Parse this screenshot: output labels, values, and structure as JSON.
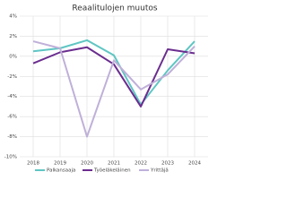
{
  "chart_data": {
    "type": "line",
    "title": "Reaalitulojen muutos",
    "categories": [
      "2018",
      "2019",
      "2020",
      "2021",
      "2022",
      "2023",
      "2024"
    ],
    "series": [
      {
        "name": "Palkansaaja",
        "color": "#5ec6c3",
        "values": [
          0.5,
          0.8,
          1.6,
          0.1,
          -4.8,
          -1.4,
          1.5
        ]
      },
      {
        "name": "Työeläkeläinen",
        "color": "#6b2d8f",
        "values": [
          -0.7,
          0.4,
          0.9,
          -0.8,
          -5.0,
          0.7,
          0.3
        ]
      },
      {
        "name": "Yrittäjä",
        "color": "#bfb0d9",
        "values": [
          1.5,
          0.8,
          -8.0,
          -0.4,
          -3.3,
          -1.8,
          1.0
        ]
      }
    ],
    "ylim": [
      -10,
      4
    ],
    "yticks": [
      {
        "value": 4,
        "label": "4%"
      },
      {
        "value": 2,
        "label": "2%"
      },
      {
        "value": 0,
        "label": "0%"
      },
      {
        "value": -2,
        "label": "-2%"
      },
      {
        "value": -4,
        "label": "-4%"
      },
      {
        "value": -6,
        "label": "-6%"
      },
      {
        "value": -8,
        "label": "-8%"
      },
      {
        "value": -10,
        "label": "-10%"
      }
    ],
    "grid": true,
    "legend": "bottom"
  }
}
